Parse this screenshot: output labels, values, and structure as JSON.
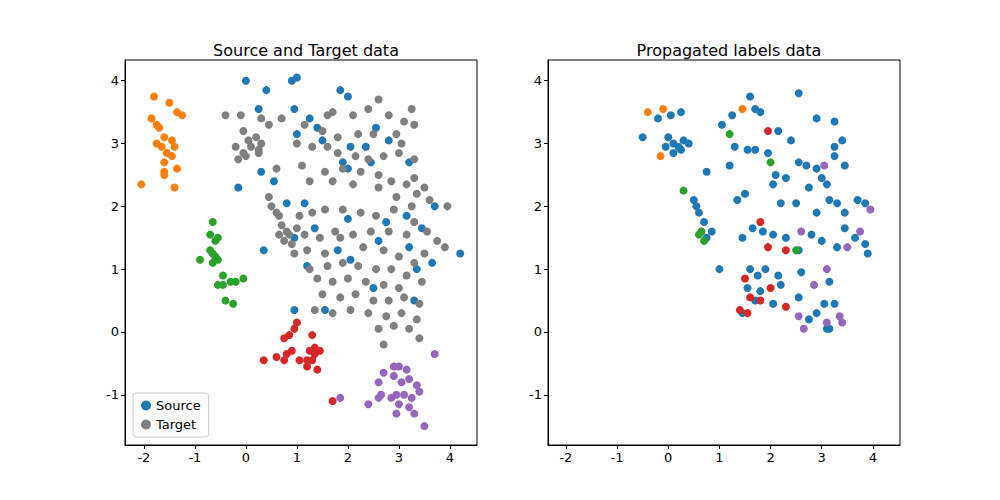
{
  "chart_data": [
    {
      "type": "scatter",
      "title": "Source and Target data",
      "marker": "circle",
      "grid": false,
      "legend": "lower left",
      "xlim": [
        -2.37,
        4.53
      ],
      "ylim": [
        -1.8,
        4.33
      ],
      "xticks": [
        -2,
        -1,
        0,
        1,
        2,
        3,
        4
      ],
      "yticks": [
        -1,
        0,
        1,
        2,
        3,
        4
      ],
      "series": [
        {
          "name": "Source",
          "color": "#1f77b4",
          "x": [
            0,
            0.4,
            0.9,
            1.0,
            0.25,
            1.25,
            0.95,
            1.85,
            2.0,
            1.0,
            1.4,
            1.5,
            2.55,
            2.8,
            1.9,
            2.05,
            2.35,
            2.45,
            3.2,
            -0.15,
            0.3,
            0.55,
            2.0,
            3.7,
            3.15,
            2.75,
            0.95,
            1.35,
            1.8,
            2.05,
            2.6,
            3.45,
            3.2,
            4.2,
            3.65,
            0.35,
            1.2,
            0.95,
            2.5,
            3.3,
            1.55,
            1.15,
            2.0,
            0.8,
            3.35,
            -1.8,
            -1.5,
            -1.35,
            -1.25,
            -1.85,
            -1.75,
            -1.7,
            -1.6,
            -1.45,
            -1.75,
            -1.65,
            -1.4,
            -1.55,
            -1.45,
            -1.6,
            -1.35,
            -1.6,
            -1.6,
            -2.05,
            -1.4,
            -0.65,
            -0.7,
            -0.55,
            -0.6,
            -0.7,
            -0.65,
            -0.9,
            -0.6,
            -0.55,
            -0.65,
            -0.45,
            -0.3,
            -0.05,
            -0.2,
            -0.55,
            -0.45,
            -0.4,
            -0.25,
            1.0,
            0.95,
            0.85,
            1.3,
            0.75,
            1.35,
            1.45,
            1.25,
            0.9,
            0.8,
            1.35,
            0.35,
            0.6,
            1.2,
            1.3,
            0.75,
            1.05,
            1.2,
            1.4,
            1.7,
            3.7,
            2.9,
            3.0,
            3.15,
            2.7,
            2.9,
            3.2,
            2.6,
            3.05,
            3.35,
            3.4,
            2.65,
            2.95,
            3.1,
            2.6,
            1.85,
            2.85,
            3.25,
            2.4,
            3.0,
            3.2,
            3.3,
            2.95,
            3.5
          ],
          "values": [
            4.0,
            3.85,
            4.0,
            4.05,
            3.55,
            3.4,
            3.55,
            3.85,
            3.75,
            3.15,
            3.25,
            3.05,
            3.25,
            3.05,
            2.7,
            2.95,
            2.95,
            2.7,
            2.7,
            2.3,
            2.55,
            2.4,
            2.6,
            2.0,
            1.85,
            1.75,
            1.5,
            1.65,
            1.3,
            1.15,
            1.45,
            1.65,
            1.35,
            1.25,
            1.1,
            1.3,
            1.05,
            0.35,
            0.7,
            0.5,
            0.35,
            2.05,
            1.8,
            2.05,
            1.0,
            3.75,
            3.65,
            3.5,
            3.45,
            3.4,
            3.3,
            3.25,
            3.1,
            3.05,
            3.0,
            2.95,
            2.95,
            2.85,
            2.8,
            2.7,
            2.6,
            2.55,
            2.5,
            2.35,
            2.3,
            1.75,
            1.55,
            1.5,
            1.45,
            1.3,
            1.25,
            1.15,
            1.2,
            1.15,
            1.1,
            0.9,
            0.8,
            0.85,
            0.8,
            0.75,
            0.75,
            0.5,
            0.45,
            0.15,
            0.05,
            -0.05,
            -0.05,
            -0.1,
            -0.25,
            -0.3,
            -0.3,
            -0.3,
            -0.35,
            -0.35,
            -0.45,
            -0.4,
            -0.45,
            -0.45,
            -0.45,
            -0.45,
            -0.55,
            -0.6,
            -1.1,
            -0.35,
            -0.55,
            -0.55,
            -0.6,
            -0.65,
            -0.7,
            -0.75,
            -0.8,
            -0.8,
            -0.85,
            -0.95,
            -1.0,
            -1.0,
            -1.0,
            -1.05,
            -1.05,
            -1.05,
            -1.05,
            -1.15,
            -1.15,
            -1.2,
            -1.3,
            -1.3,
            -1.5
          ],
          "colors": [
            "#1f77b4",
            "#1f77b4",
            "#1f77b4",
            "#1f77b4",
            "#1f77b4",
            "#1f77b4",
            "#1f77b4",
            "#1f77b4",
            "#1f77b4",
            "#1f77b4",
            "#1f77b4",
            "#1f77b4",
            "#1f77b4",
            "#1f77b4",
            "#1f77b4",
            "#1f77b4",
            "#1f77b4",
            "#1f77b4",
            "#1f77b4",
            "#1f77b4",
            "#1f77b4",
            "#1f77b4",
            "#1f77b4",
            "#1f77b4",
            "#1f77b4",
            "#1f77b4",
            "#1f77b4",
            "#1f77b4",
            "#1f77b4",
            "#1f77b4",
            "#1f77b4",
            "#1f77b4",
            "#1f77b4",
            "#1f77b4",
            "#1f77b4",
            "#1f77b4",
            "#1f77b4",
            "#1f77b4",
            "#1f77b4",
            "#1f77b4",
            "#1f77b4",
            "#1f77b4",
            "#1f77b4",
            "#1f77b4",
            "#1f77b4",
            "#ff7f0e",
            "#ff7f0e",
            "#ff7f0e",
            "#ff7f0e",
            "#ff7f0e",
            "#ff7f0e",
            "#ff7f0e",
            "#ff7f0e",
            "#ff7f0e",
            "#ff7f0e",
            "#ff7f0e",
            "#ff7f0e",
            "#ff7f0e",
            "#ff7f0e",
            "#ff7f0e",
            "#ff7f0e",
            "#ff7f0e",
            "#ff7f0e",
            "#ff7f0e",
            "#ff7f0e",
            "#2ca02c",
            "#2ca02c",
            "#2ca02c",
            "#2ca02c",
            "#2ca02c",
            "#2ca02c",
            "#2ca02c",
            "#2ca02c",
            "#2ca02c",
            "#2ca02c",
            "#2ca02c",
            "#2ca02c",
            "#2ca02c",
            "#2ca02c",
            "#2ca02c",
            "#2ca02c",
            "#2ca02c",
            "#2ca02c",
            "#d62728",
            "#d62728",
            "#d62728",
            "#d62728",
            "#d62728",
            "#d62728",
            "#d62728",
            "#d62728",
            "#d62728",
            "#d62728",
            "#d62728",
            "#d62728",
            "#d62728",
            "#d62728",
            "#d62728",
            "#d62728",
            "#d62728",
            "#d62728",
            "#d62728",
            "#d62728",
            "#9467bd",
            "#9467bd",
            "#9467bd",
            "#9467bd",
            "#9467bd",
            "#9467bd",
            "#9467bd",
            "#9467bd",
            "#9467bd",
            "#9467bd",
            "#9467bd",
            "#9467bd",
            "#9467bd",
            "#9467bd",
            "#9467bd",
            "#9467bd",
            "#9467bd",
            "#9467bd",
            "#9467bd",
            "#9467bd",
            "#9467bd",
            "#9467bd",
            "#9467bd",
            "#9467bd"
          ]
        },
        {
          "name": "Target",
          "color": "#7f7f7f",
          "x": [
            -0.4,
            -0.1,
            0.3,
            0.45,
            -0.05,
            0.2,
            0.05,
            0.3,
            -0.2,
            0.1,
            0.25,
            -0.05,
            0.0,
            -0.15,
            0.25,
            0.7,
            1.15,
            1.6,
            1.7,
            2.1,
            2.4,
            2.6,
            2.8,
            3.1,
            3.3,
            3.25,
            1.5,
            1.8,
            2.2,
            2.5,
            2.95,
            3.05,
            1.0,
            1.3,
            1.6,
            1.8,
            2.15,
            2.4,
            2.7,
            3.0,
            3.3,
            0.6,
            1.1,
            1.55,
            1.9,
            2.25,
            2.6,
            2.85,
            3.15,
            3.3,
            3.5,
            3.35,
            3.6,
            3.95,
            3.25,
            2.95,
            2.6,
            2.1,
            1.7,
            1.25,
            0.45,
            0.5,
            0.6,
            0.65,
            0.7,
            0.8,
            0.65,
            0.75,
            0.9,
            0.85,
            1.0,
            1.15,
            0.95,
            1.05,
            1.3,
            1.55,
            1.9,
            2.25,
            2.55,
            2.9,
            3.3,
            3.55,
            3.75,
            3.9,
            3.5,
            3.15,
            2.8,
            2.45,
            2.1,
            1.75,
            1.45,
            1.2,
            1.55,
            1.85,
            2.3,
            2.7,
            3.0,
            3.3,
            1.25,
            1.6,
            1.9,
            2.2,
            2.55,
            2.85,
            3.15,
            3.45,
            1.4,
            1.7,
            2.0,
            2.35,
            2.7,
            3.0,
            1.5,
            1.85,
            2.15,
            2.5,
            2.8,
            3.1,
            3.4,
            1.35,
            1.7,
            2.05,
            2.4,
            2.75,
            3.05,
            3.35,
            2.6,
            2.9,
            3.2,
            2.7,
            3.4
          ],
          "values": [
            3.45,
            3.45,
            3.4,
            3.3,
            3.2,
            3.1,
            3.05,
            3.0,
            2.95,
            2.95,
            2.9,
            2.85,
            2.8,
            2.75,
            2.85,
            3.4,
            3.3,
            3.45,
            3.5,
            3.45,
            3.55,
            3.7,
            3.45,
            3.35,
            3.3,
            3.55,
            3.2,
            3.1,
            3.15,
            3.15,
            3.15,
            3.0,
            3.0,
            2.95,
            2.95,
            2.85,
            2.8,
            2.75,
            2.8,
            2.85,
            2.75,
            2.6,
            2.65,
            2.55,
            2.6,
            2.55,
            2.5,
            2.4,
            2.35,
            2.45,
            2.3,
            2.2,
            2.1,
            2.0,
            2.0,
            2.15,
            2.3,
            2.35,
            2.4,
            2.4,
            2.15,
            2.0,
            1.9,
            1.85,
            1.7,
            1.6,
            1.55,
            1.45,
            1.4,
            1.55,
            1.65,
            1.55,
            1.25,
            1.85,
            1.9,
            1.95,
            1.95,
            1.9,
            1.85,
            1.95,
            1.75,
            1.6,
            1.45,
            1.35,
            1.25,
            1.55,
            1.6,
            1.6,
            1.55,
            1.6,
            1.5,
            1.3,
            1.25,
            1.5,
            1.35,
            1.3,
            1.2,
            1.1,
            1.0,
            1.05,
            1.1,
            1.05,
            1.0,
            1.0,
            0.9,
            0.8,
            0.85,
            0.8,
            0.85,
            0.8,
            0.75,
            0.7,
            0.6,
            0.55,
            0.6,
            0.5,
            0.5,
            0.55,
            0.45,
            0.35,
            0.3,
            0.35,
            0.3,
            0.25,
            0.3,
            0.2,
            0.05,
            0.1,
            0.05,
            -0.2,
            -0.1
          ]
        }
      ]
    },
    {
      "type": "scatter",
      "title": "Propagated labels data",
      "marker": "circle",
      "grid": false,
      "xlim": [
        -2.35,
        4.53
      ],
      "ylim": [
        -1.8,
        4.33
      ],
      "xticks": [
        -2,
        -1,
        0,
        1,
        2,
        3,
        4
      ],
      "yticks": [
        -1,
        0,
        1,
        2,
        3,
        4
      ],
      "series": [
        {
          "color": "#1f77b4",
          "x": [
            -0.5,
            -0.2,
            0.05,
            0.25,
            0.0,
            0.1,
            0.2,
            0.25,
            0.3,
            0.1,
            -0.05,
            0.4,
            1.05,
            1.25,
            1.6,
            1.7,
            1.8,
            2.55,
            2.9,
            3.25,
            1.3,
            1.55,
            1.7,
            1.95,
            2.15,
            2.4,
            2.1,
            2.3,
            2.55,
            2.7,
            2.9,
            3.25,
            3.25,
            3.4,
            3.45,
            3.0,
            3.1,
            2.75,
            2.05,
            1.2,
            0.75,
            3.15,
            3.3,
            3.7,
            3.85,
            3.45,
            2.9,
            2.5,
            2.2,
            1.5,
            1.35,
            0.5,
            0.55,
            0.6,
            0.7,
            0.85,
            0.75,
            1.45,
            1.65,
            1.85,
            2.05,
            2.3,
            2.8,
            3.0,
            3.45,
            3.65,
            3.85,
            3.9,
            3.3,
            2.55,
            1.0,
            1.6,
            1.75,
            1.9,
            2.15,
            2.6,
            1.55,
            1.8,
            2.2,
            3.15,
            3.25,
            3.05,
            2.9,
            2.75,
            3.1,
            3.15,
            1.45,
            2.05,
            1.7,
            2.55
          ],
          "values": [
            3.1,
            3.4,
            3.45,
            3.5,
            3.1,
            3.0,
            2.95,
            2.9,
            3.05,
            2.85,
            2.95,
            3.0,
            3.3,
            3.45,
            3.75,
            3.55,
            3.5,
            3.8,
            3.4,
            3.35,
            2.95,
            2.9,
            2.9,
            2.85,
            3.2,
            3.05,
            2.5,
            2.45,
            2.7,
            2.65,
            2.6,
            2.95,
            2.8,
            3.05,
            2.65,
            2.45,
            2.35,
            2.3,
            2.35,
            2.65,
            2.55,
            2.1,
            2.05,
            2.1,
            2.05,
            1.9,
            1.9,
            2.05,
            2.05,
            2.2,
            2.1,
            2.1,
            2.0,
            1.9,
            1.75,
            1.6,
            1.5,
            1.5,
            1.65,
            1.6,
            1.55,
            1.5,
            1.55,
            1.45,
            1.65,
            1.5,
            1.4,
            1.25,
            1.35,
            1.3,
            1.0,
            1.0,
            0.9,
            1.0,
            0.9,
            0.95,
            0.7,
            0.65,
            0.75,
            0.8,
            0.45,
            0.45,
            0.3,
            0.2,
            0.05,
            0.05,
            0.3,
            0.45,
            0.5,
            0.55
          ]
        },
        {
          "color": "#ff7f0e",
          "x": [
            -0.4,
            -0.1,
            -0.15,
            1.45
          ],
          "values": [
            3.5,
            3.55,
            2.8,
            3.55
          ]
        },
        {
          "color": "#2ca02c",
          "x": [
            1.2,
            2.0,
            0.3,
            0.65,
            0.7,
            2.5,
            0.6
          ],
          "values": [
            3.15,
            2.7,
            2.25,
            1.6,
            1.45,
            1.3,
            1.55
          ]
        },
        {
          "color": "#d62728",
          "x": [
            1.95,
            1.8,
            1.5,
            2.0,
            1.6,
            1.8,
            1.4,
            1.55,
            2.3,
            2.3,
            1.95
          ],
          "values": [
            3.2,
            1.75,
            0.85,
            0.7,
            0.55,
            0.5,
            0.35,
            0.3,
            0.4,
            1.3,
            1.35
          ]
        },
        {
          "color": "#9467bd",
          "x": [
            3.05,
            3.95,
            3.75,
            3.5,
            2.6,
            2.85,
            3.1,
            3.35,
            3.4,
            3.1,
            2.55,
            2.65
          ],
          "values": [
            2.65,
            1.95,
            1.6,
            1.35,
            1.6,
            0.75,
            1.0,
            0.25,
            0.15,
            0.15,
            0.25,
            0.05
          ]
        }
      ]
    }
  ]
}
